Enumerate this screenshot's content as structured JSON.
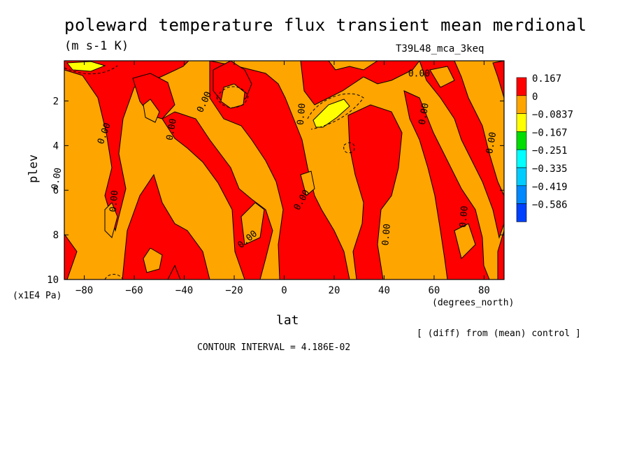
{
  "chart_data": {
    "type": "heatmap",
    "title": "poleward temperature flux transient mean merdional",
    "units": "(m s-1 K)",
    "run_label": "T39L48_mca_3keq",
    "xlabel": "lat",
    "ylabel": "plev",
    "x_units": "(degrees_north)",
    "y_units": "(x1E4 Pa)",
    "x_ticks": [
      -80,
      -60,
      -40,
      -20,
      0,
      20,
      40,
      60,
      80
    ],
    "y_ticks": [
      2,
      4,
      6,
      8,
      10
    ],
    "xlim": [
      -88,
      88
    ],
    "ylim": [
      10,
      0.2
    ],
    "note": "[ (diff) from (mean) control ]",
    "contour_interval": "CONTOUR INTERVAL = 4.186E-02",
    "contour_labels": [
      {
        "text": "0.00",
        "lat": -90,
        "plev": 5.5,
        "rot": -80
      },
      {
        "text": "0.00",
        "lat": -71,
        "plev": 3.5,
        "rot": -70
      },
      {
        "text": "0.00",
        "lat": -67,
        "plev": 6.5,
        "rot": -85
      },
      {
        "text": "0.00",
        "lat": -44,
        "plev": 3.3,
        "rot": -80
      },
      {
        "text": "0.00",
        "lat": -31,
        "plev": 2.1,
        "rot": -65
      },
      {
        "text": "0.00",
        "lat": -14,
        "plev": 8.3,
        "rot": -40
      },
      {
        "text": "0.00",
        "lat": 8,
        "plev": 2.6,
        "rot": -85
      },
      {
        "text": "0.00",
        "lat": 8,
        "plev": 6.5,
        "rot": -60
      },
      {
        "text": "0.00",
        "lat": 42,
        "plev": 8.0,
        "rot": -85
      },
      {
        "text": "0.00",
        "lat": 54,
        "plev": 0.9,
        "rot": 0
      },
      {
        "text": "0.00",
        "lat": 57,
        "plev": 2.6,
        "rot": -80
      },
      {
        "text": "0.00",
        "lat": 73,
        "plev": 7.2,
        "rot": -85
      },
      {
        "text": "0.00",
        "lat": 84,
        "plev": 3.9,
        "rot": -80
      }
    ],
    "legend": {
      "levels": [
        {
          "label": "0.167",
          "color": "#ff0000"
        },
        {
          "label": "0",
          "color": "#ffa500"
        },
        {
          "label": "−0.0837",
          "color": "#ffff00"
        },
        {
          "label": "−0.167",
          "color": "#00dd00"
        },
        {
          "label": "−0.251",
          "color": "#00ffff"
        },
        {
          "label": "−0.335",
          "color": "#00ccff"
        },
        {
          "label": "−0.419",
          "color": "#0088ff"
        },
        {
          "label": "−0.586",
          "color": "#0040ff"
        }
      ]
    },
    "colors": {
      "positive": "#ff0000",
      "near_zero": "#ffa500",
      "negative": "#ffff00"
    }
  }
}
